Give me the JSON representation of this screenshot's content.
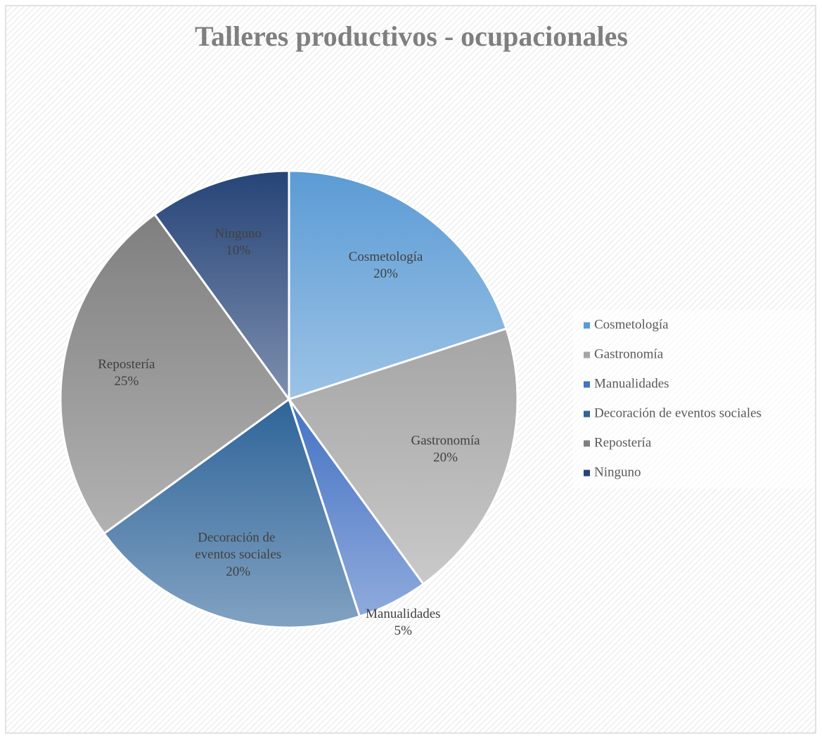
{
  "chart_data": {
    "type": "pie",
    "title": "Talleres productivos - ocupacionales",
    "categories": [
      "Cosmetología",
      "Gastronomía",
      "Manualidades",
      "Decoración de eventos sociales",
      "Repostería",
      "Ninguno"
    ],
    "values": [
      20,
      20,
      5,
      20,
      25,
      10
    ],
    "value_labels": [
      "20%",
      "20%",
      "5%",
      "20%",
      "25%",
      "10%"
    ],
    "colors": [
      "#5b9bd5",
      "#a5a5a5",
      "#4472c4",
      "#2e6499",
      "#7f7f7f",
      "#264478"
    ],
    "legend": "right"
  }
}
